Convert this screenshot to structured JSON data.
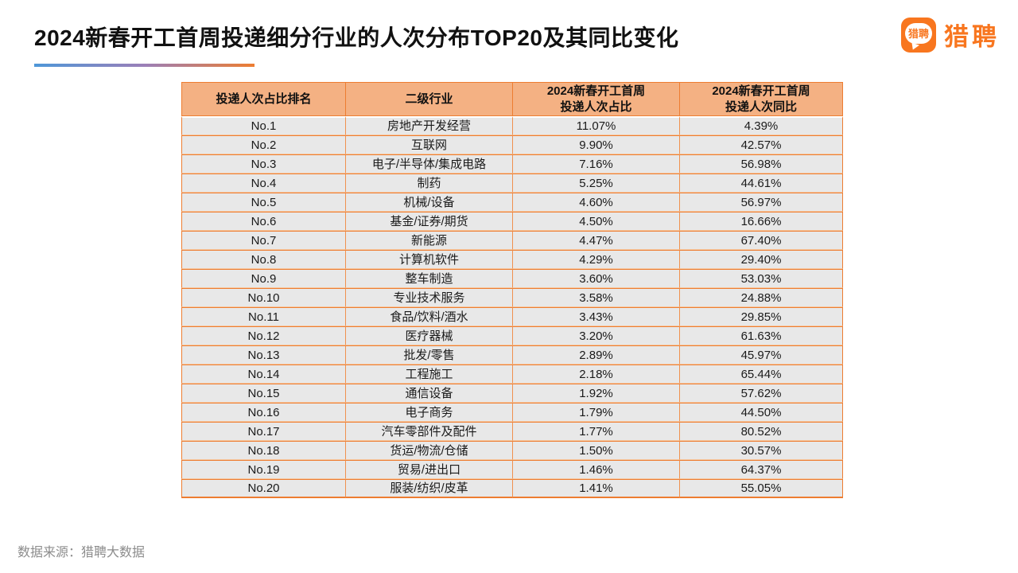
{
  "page": {
    "title": "2024新春开工首周投递细分行业的人次分布TOP20及其同比变化",
    "source_note": "数据来源：猎聘大数据"
  },
  "brand": {
    "logo_bubble_text": "猎聘",
    "wordmark": "猎聘",
    "orange": "#F8761F"
  },
  "colors": {
    "title_text": "#111111",
    "underline_gradient": [
      "#4E97D8",
      "#9B7FB8",
      "#ED7D31"
    ],
    "table_border_orange": "#ED7D31",
    "header_bg": "#F4B183",
    "row_bg": "#E8E8E8",
    "source_gray": "#8C8C8C"
  },
  "chart_data": {
    "type": "table",
    "title": "2024新春开工首周投递细分行业的人次分布TOP20及其同比变化",
    "columns": [
      "投递人次占比排名",
      "二级行业",
      "2024新春开工首周\n投递人次占比",
      "2024新春开工首周\n投递人次同比"
    ],
    "rows": [
      [
        "No.1",
        "房地产开发经营",
        "11.07%",
        "4.39%"
      ],
      [
        "No.2",
        "互联网",
        "9.90%",
        "42.57%"
      ],
      [
        "No.3",
        "电子/半导体/集成电路",
        "7.16%",
        "56.98%"
      ],
      [
        "No.4",
        "制药",
        "5.25%",
        "44.61%"
      ],
      [
        "No.5",
        "机械/设备",
        "4.60%",
        "56.97%"
      ],
      [
        "No.6",
        "基金/证券/期货",
        "4.50%",
        "16.66%"
      ],
      [
        "No.7",
        "新能源",
        "4.47%",
        "67.40%"
      ],
      [
        "No.8",
        "计算机软件",
        "4.29%",
        "29.40%"
      ],
      [
        "No.9",
        "整车制造",
        "3.60%",
        "53.03%"
      ],
      [
        "No.10",
        "专业技术服务",
        "3.58%",
        "24.88%"
      ],
      [
        "No.11",
        "食品/饮料/酒水",
        "3.43%",
        "29.85%"
      ],
      [
        "No.12",
        "医疗器械",
        "3.20%",
        "61.63%"
      ],
      [
        "No.13",
        "批发/零售",
        "2.89%",
        "45.97%"
      ],
      [
        "No.14",
        "工程施工",
        "2.18%",
        "65.44%"
      ],
      [
        "No.15",
        "通信设备",
        "1.92%",
        "57.62%"
      ],
      [
        "No.16",
        "电子商务",
        "1.79%",
        "44.50%"
      ],
      [
        "No.17",
        "汽车零部件及配件",
        "1.77%",
        "80.52%"
      ],
      [
        "No.18",
        "货运/物流/仓储",
        "1.50%",
        "30.57%"
      ],
      [
        "No.19",
        "贸易/进出口",
        "1.46%",
        "64.37%"
      ],
      [
        "No.20",
        "服装/纺织/皮革",
        "1.41%",
        "55.05%"
      ]
    ]
  }
}
